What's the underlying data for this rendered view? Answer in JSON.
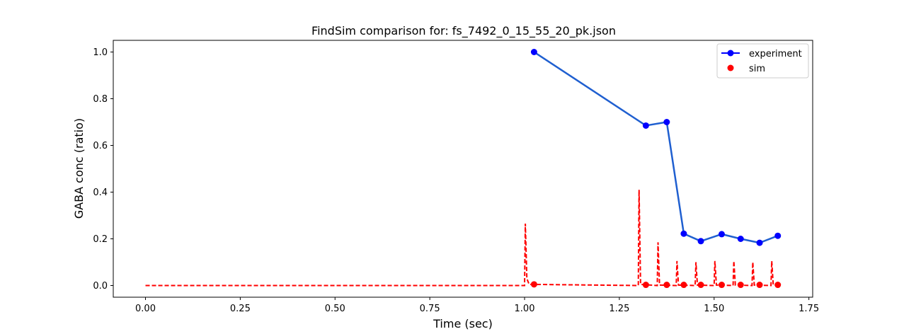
{
  "chart_data": {
    "type": "line",
    "title": "FindSim comparison for: fs_7492_0_15_55_20_pk.json",
    "xlabel": "Time (sec)",
    "ylabel": "GABA conc (ratio)",
    "xlim": [
      -0.085,
      1.76
    ],
    "ylim": [
      -0.05,
      1.05
    ],
    "xticks": [
      0.0,
      0.25,
      0.5,
      0.75,
      1.0,
      1.25,
      1.5,
      1.75
    ],
    "xtick_labels": [
      "0.00",
      "0.25",
      "0.50",
      "0.75",
      "1.00",
      "1.25",
      "1.50",
      "1.75"
    ],
    "yticks": [
      0.0,
      0.2,
      0.4,
      0.6,
      0.8,
      1.0
    ],
    "ytick_labels": [
      "0.0",
      "0.2",
      "0.4",
      "0.6",
      "0.8",
      "1.0"
    ],
    "grid": false,
    "legend_position": "top-right",
    "colors": {
      "experiment_marker": "#0000ff",
      "experiment_line": "#1f5fd0",
      "sim": "#ff0000"
    },
    "series": [
      {
        "name": "experiment",
        "style": "line-marker",
        "x": [
          1.025,
          1.32,
          1.375,
          1.42,
          1.465,
          1.52,
          1.57,
          1.62,
          1.668
        ],
        "y": [
          1.0,
          0.685,
          0.7,
          0.222,
          0.19,
          0.22,
          0.2,
          0.183,
          0.213
        ]
      },
      {
        "name": "sim",
        "style": "marker",
        "x": [
          1.025,
          1.32,
          1.375,
          1.42,
          1.465,
          1.52,
          1.57,
          1.62,
          1.668
        ],
        "y": [
          0.005,
          0.003,
          0.003,
          0.003,
          0.003,
          0.003,
          0.003,
          0.003,
          0.003
        ]
      },
      {
        "style": "dashed-line",
        "x": [
          0.0,
          1.0,
          1.002,
          1.006,
          1.012,
          1.3,
          1.302,
          1.306,
          1.35,
          1.352,
          1.356,
          1.4,
          1.402,
          1.406,
          1.45,
          1.452,
          1.456,
          1.5,
          1.502,
          1.506,
          1.55,
          1.552,
          1.556,
          1.6,
          1.602,
          1.606,
          1.65,
          1.652,
          1.656,
          1.67
        ],
        "y": [
          0.0,
          0.0,
          0.265,
          0.03,
          0.005,
          0.0,
          0.41,
          0.005,
          0.0,
          0.185,
          0.002,
          0.0,
          0.105,
          0.002,
          0.0,
          0.1,
          0.002,
          0.0,
          0.105,
          0.002,
          0.0,
          0.105,
          0.002,
          0.0,
          0.1,
          0.002,
          0.0,
          0.105,
          0.002,
          0.0
        ]
      }
    ]
  }
}
